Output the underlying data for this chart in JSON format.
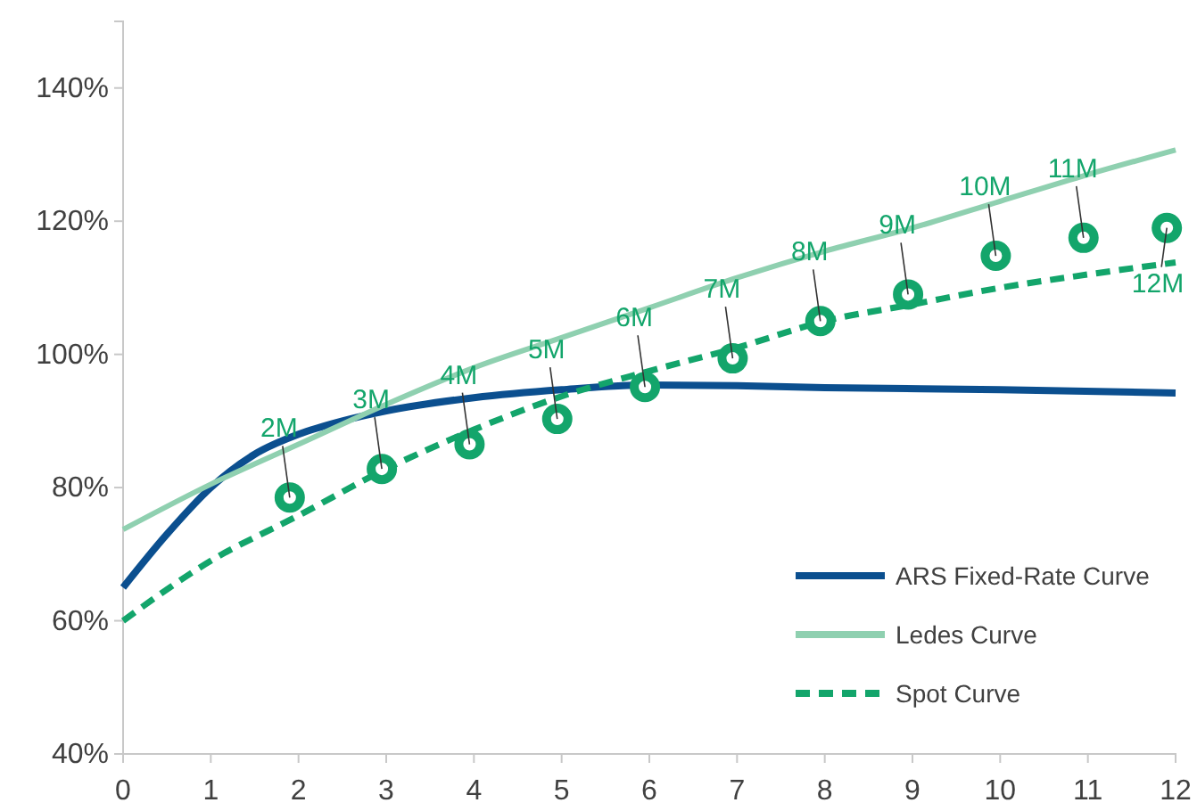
{
  "chart_data": {
    "type": "line",
    "xlim": [
      0,
      12
    ],
    "ylim": [
      40,
      150
    ],
    "xticks": [
      0,
      1,
      2,
      3,
      4,
      5,
      6,
      7,
      8,
      9,
      10,
      11,
      12
    ],
    "yticks": [
      {
        "value": 40,
        "label": "40%"
      },
      {
        "value": 60,
        "label": "60%"
      },
      {
        "value": 80,
        "label": "80%"
      },
      {
        "value": 100,
        "label": "100%"
      },
      {
        "value": 120,
        "label": "120%"
      },
      {
        "value": 140,
        "label": "140%"
      }
    ],
    "grid": false,
    "legend": "bottom right",
    "series": [
      {
        "name": "ARS Fixed-Rate Curve",
        "color": "#0b4f8f",
        "line_style": "solid",
        "x": [
          0,
          0.5,
          1,
          1.5,
          2,
          2.5,
          3,
          4,
          5,
          6,
          7,
          8,
          10,
          12
        ],
        "values": [
          65,
          73,
          80,
          85,
          88,
          90,
          91.5,
          93.5,
          94.7,
          95.4,
          95.3,
          95,
          94.7,
          94.2
        ]
      },
      {
        "name": "Ledes Curve",
        "color": "#8fd0b0",
        "line_style": "solid",
        "x": [
          0,
          1,
          2,
          3,
          4,
          5,
          6,
          7,
          8,
          9,
          10,
          11,
          12
        ],
        "values": [
          73.7,
          80.5,
          86.5,
          92.5,
          98,
          102.5,
          107,
          111.5,
          115.5,
          119,
          123,
          127,
          130.7
        ]
      },
      {
        "name": "Spot Curve",
        "color": "#13a56b",
        "line_style": "dashed",
        "x": [
          0,
          1,
          2,
          3,
          4,
          5,
          6,
          7,
          8,
          9,
          10,
          11,
          12
        ],
        "values": [
          60,
          69,
          75.8,
          82.8,
          88.7,
          93.7,
          97.5,
          101,
          105,
          107.5,
          110,
          112,
          113.8
        ]
      },
      {
        "type": "scatter",
        "color": "#13a56b",
        "marker": "circle",
        "x": [
          1.9,
          2.95,
          3.95,
          4.95,
          5.95,
          6.95,
          7.95,
          8.95,
          9.95,
          10.95,
          11.9
        ],
        "values": [
          78.5,
          82.8,
          86.5,
          90.3,
          95.1,
          99.4,
          105,
          109,
          114.8,
          117.5,
          119
        ]
      }
    ],
    "annotations": [
      {
        "text": "2M",
        "x": 1.9,
        "y": 78.5
      },
      {
        "text": "3M",
        "x": 2.95,
        "y": 82.8
      },
      {
        "text": "4M",
        "x": 3.95,
        "y": 86.5
      },
      {
        "text": "5M",
        "x": 4.95,
        "y": 90.3
      },
      {
        "text": "6M",
        "x": 5.95,
        "y": 95.1
      },
      {
        "text": "7M",
        "x": 6.95,
        "y": 99.4
      },
      {
        "text": "8M",
        "x": 7.95,
        "y": 105
      },
      {
        "text": "9M",
        "x": 8.95,
        "y": 109
      },
      {
        "text": "10M",
        "x": 9.95,
        "y": 114.8
      },
      {
        "text": "11M",
        "x": 10.95,
        "y": 117.5
      },
      {
        "text": "12M",
        "x": 11.9,
        "y": 119
      }
    ]
  }
}
